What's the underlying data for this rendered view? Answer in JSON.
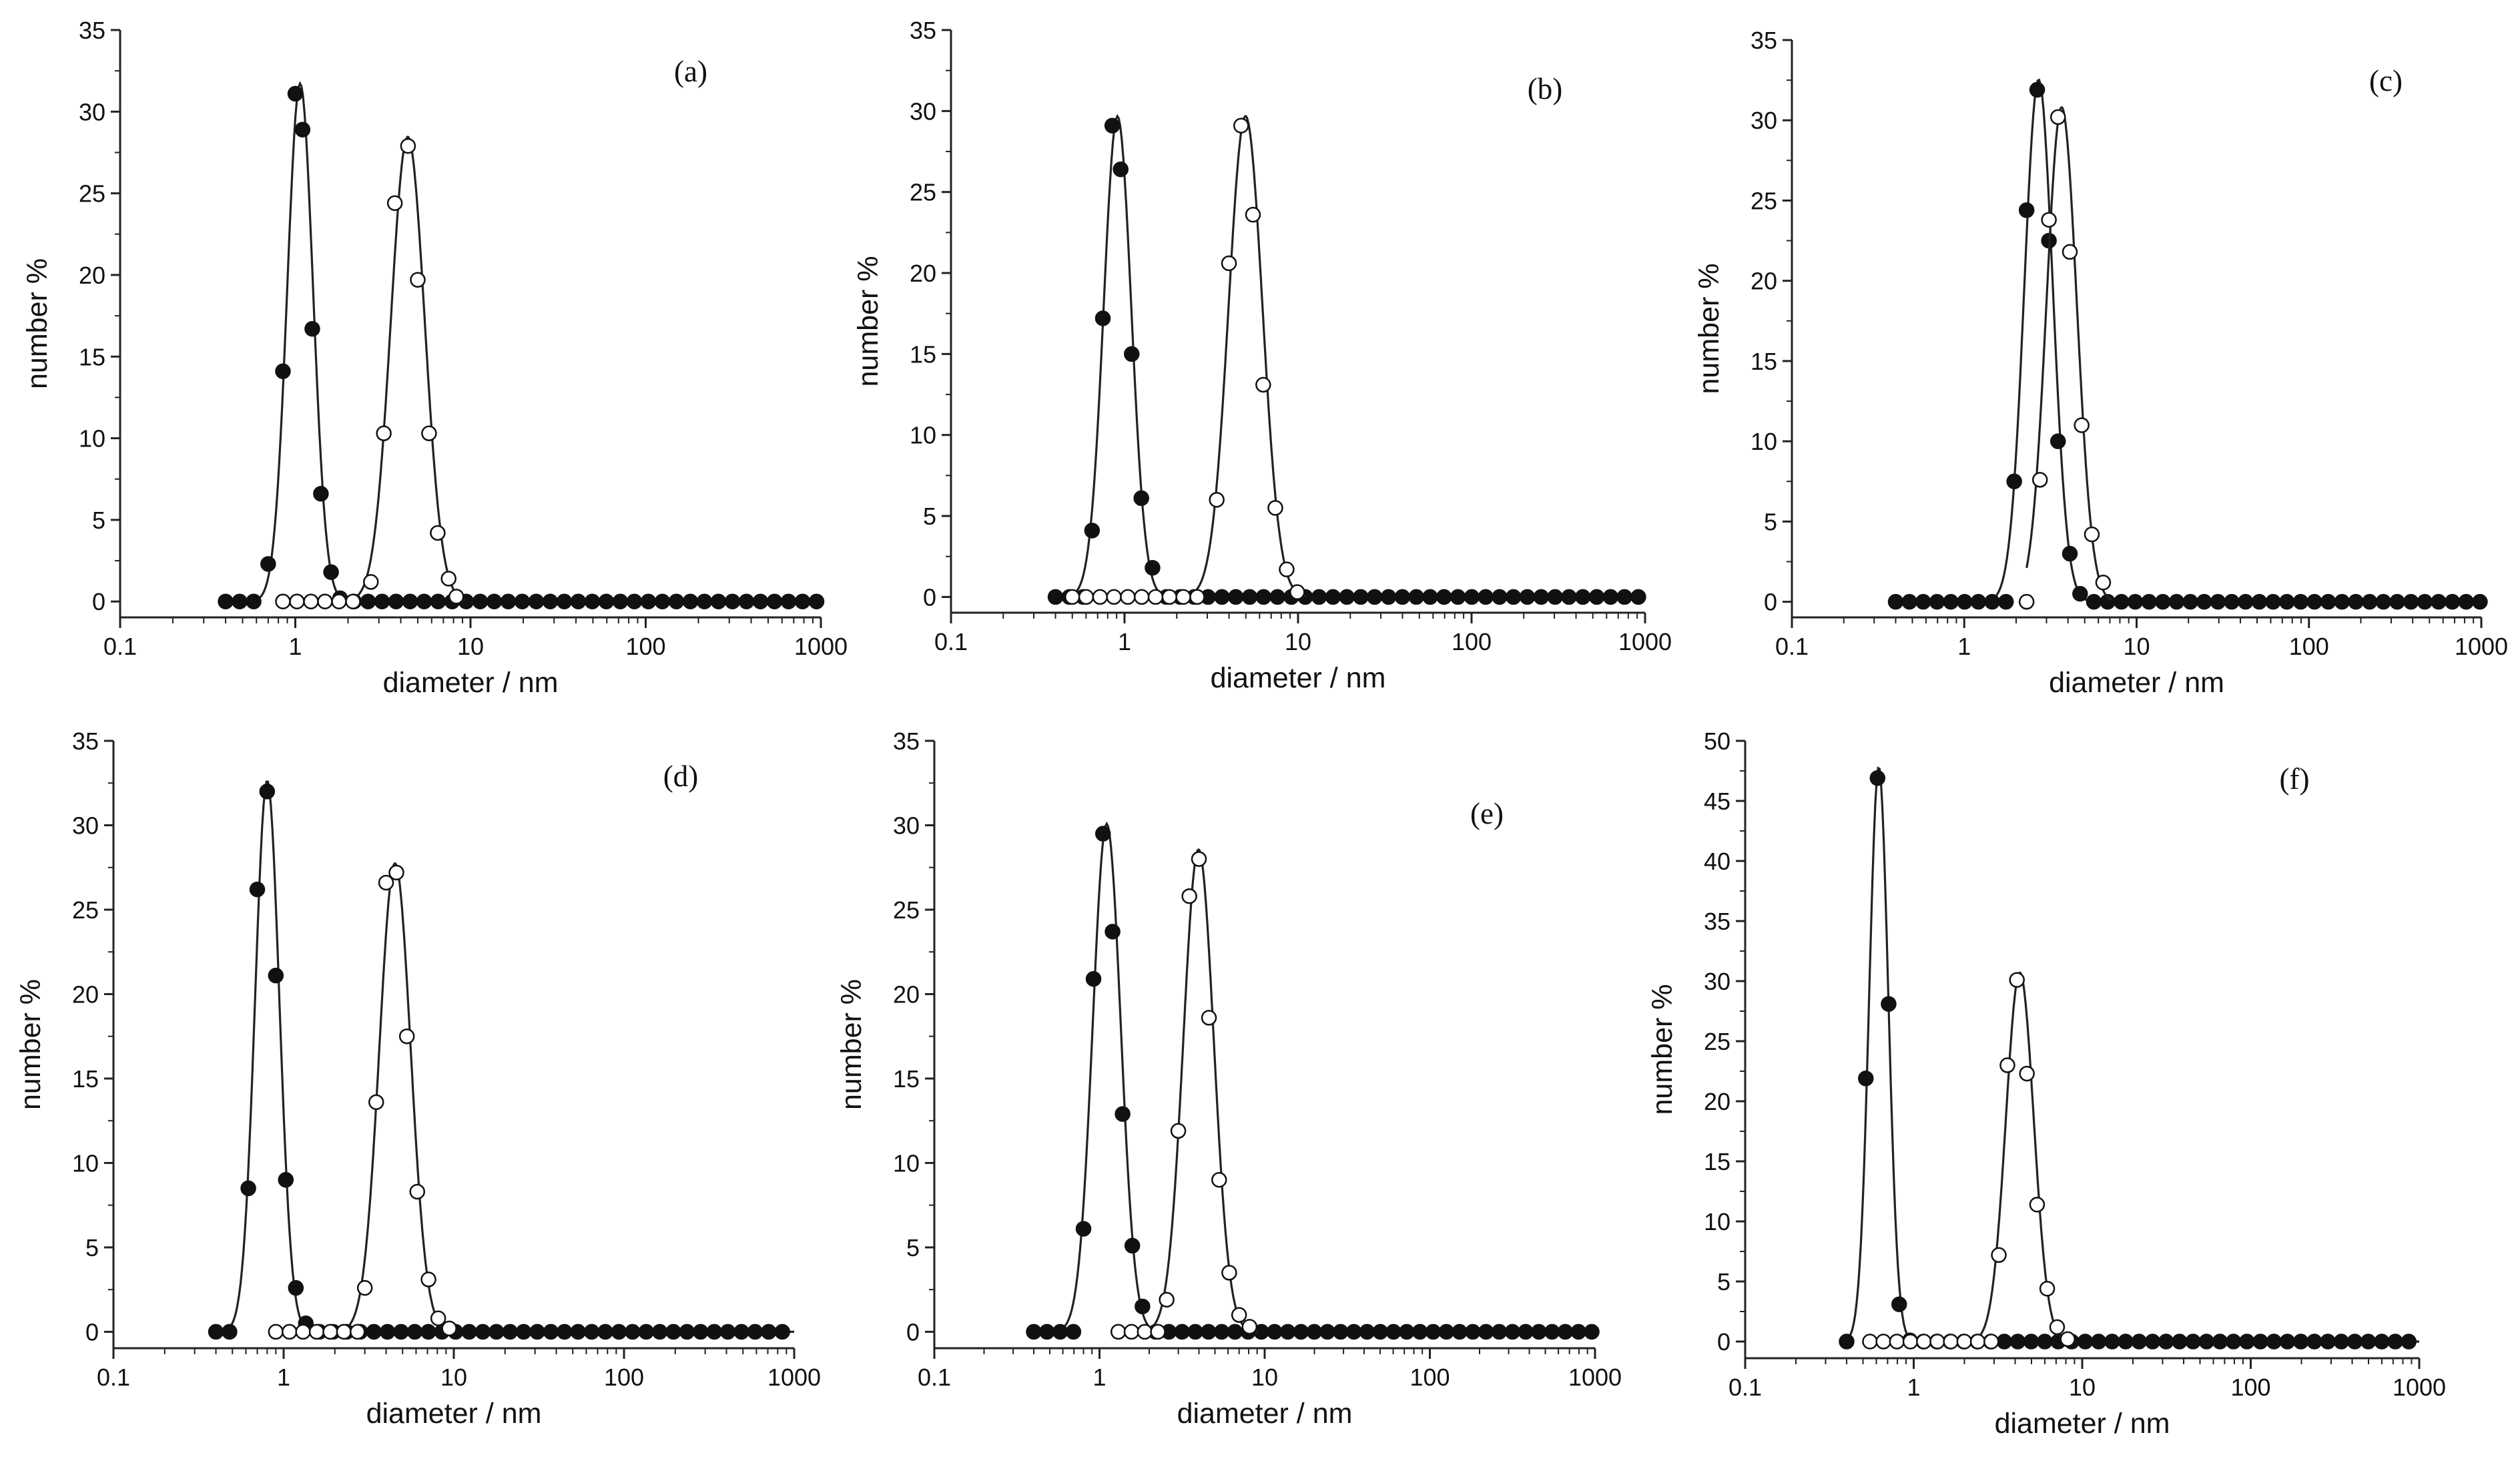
{
  "figure": {
    "caption": ""
  },
  "chart_data": [
    {
      "type": "scatter",
      "label": "(a)",
      "xlabel": "diameter / nm",
      "ylabel": "number %",
      "xscale": "log",
      "xlim": [
        0.1,
        1000
      ],
      "ylim": [
        0,
        35
      ],
      "xticks": [
        "0.1",
        "1",
        "10",
        "100",
        "1000"
      ],
      "yticks": [
        "0",
        "5",
        "10",
        "15",
        "20",
        "25",
        "30",
        "35"
      ],
      "series": [
        {
          "name": "filled",
          "marker": "filled-circle",
          "x": [
            0.4,
            0.7,
            0.85,
            1.0,
            1.1,
            1.25,
            1.4,
            1.6,
            1.8
          ],
          "y": [
            0,
            2.3,
            14.1,
            31.1,
            28.9,
            16.7,
            6.6,
            1.8,
            0.2
          ]
        },
        {
          "name": "open",
          "marker": "open-circle",
          "x": [
            0.85,
            2.7,
            3.2,
            3.7,
            4.4,
            5.0,
            5.8,
            6.5,
            7.5,
            8.3
          ],
          "y": [
            0,
            1.2,
            10.3,
            24.4,
            27.9,
            19.7,
            10.3,
            4.2,
            1.4,
            0.3
          ]
        }
      ]
    },
    {
      "type": "scatter",
      "label": "(b)",
      "xlabel": "diameter / nm",
      "ylabel": "number %",
      "xscale": "log",
      "xlim": [
        0.1,
        1000
      ],
      "ylim": [
        0,
        35
      ],
      "xticks": [
        "0.1",
        "1",
        "10",
        "100",
        "1000"
      ],
      "yticks": [
        "0",
        "5",
        "10",
        "15",
        "20",
        "25",
        "30",
        "35"
      ],
      "series": [
        {
          "name": "filled",
          "marker": "filled-circle",
          "x": [
            0.4,
            0.65,
            0.75,
            0.85,
            0.95,
            1.1,
            1.25,
            1.45
          ],
          "y": [
            0,
            4.1,
            17.2,
            29.1,
            26.4,
            15.0,
            6.1,
            1.8
          ]
        },
        {
          "name": "open",
          "marker": "open-circle",
          "x": [
            0.5,
            3.4,
            4.0,
            4.7,
            5.5,
            6.3,
            7.4,
            8.6,
            9.9
          ],
          "y": [
            0,
            6.0,
            20.6,
            29.1,
            23.6,
            13.1,
            5.5,
            1.7,
            0.3
          ]
        }
      ]
    },
    {
      "type": "scatter",
      "label": "(c)",
      "xlabel": "diameter / nm",
      "ylabel": "number %",
      "xscale": "log",
      "xlim": [
        0.1,
        1000
      ],
      "ylim": [
        0,
        35
      ],
      "xticks": [
        "0.1",
        "1",
        "10",
        "100",
        "1000"
      ],
      "yticks": [
        "0",
        "5",
        "10",
        "15",
        "20",
        "25",
        "30",
        "35"
      ],
      "series": [
        {
          "name": "filled",
          "marker": "filled-circle",
          "x": [
            0.4,
            1.95,
            2.3,
            2.65,
            3.1,
            3.5,
            4.1,
            4.7
          ],
          "y": [
            0,
            7.5,
            24.4,
            31.9,
            22.5,
            10.0,
            3.0,
            0.5
          ]
        },
        {
          "name": "open",
          "marker": "open-circle",
          "x": [
            2.3,
            2.75,
            3.1,
            3.5,
            4.1,
            4.8,
            5.5,
            6.4
          ],
          "y": [
            0,
            7.6,
            23.8,
            30.2,
            21.8,
            11.0,
            4.2,
            1.2
          ]
        }
      ]
    },
    {
      "type": "scatter",
      "label": "(d)",
      "xlabel": "diameter / nm",
      "ylabel": "number %",
      "xscale": "log",
      "xlim": [
        0.1,
        1000
      ],
      "ylim": [
        0,
        35
      ],
      "xticks": [
        "0.1",
        "1",
        "10",
        "100",
        "1000"
      ],
      "yticks": [
        "0",
        "5",
        "10",
        "15",
        "20",
        "25",
        "30",
        "35"
      ],
      "series": [
        {
          "name": "filled",
          "marker": "filled-circle",
          "x": [
            0.4,
            0.62,
            0.7,
            0.8,
            0.9,
            1.03,
            1.18,
            1.35
          ],
          "y": [
            0,
            8.5,
            26.2,
            32.0,
            21.1,
            9.0,
            2.6,
            0.5
          ]
        },
        {
          "name": "open",
          "marker": "open-circle",
          "x": [
            0.9,
            3.0,
            3.5,
            4.0,
            4.6,
            5.3,
            6.1,
            7.1,
            8.1,
            9.4
          ],
          "y": [
            0,
            2.6,
            13.6,
            26.6,
            27.2,
            17.5,
            8.3,
            3.1,
            0.8,
            0.2
          ]
        }
      ]
    },
    {
      "type": "scatter",
      "label": "(e)",
      "xlabel": "diameter / nm",
      "ylabel": "number %",
      "xscale": "log",
      "xlim": [
        0.1,
        1000
      ],
      "ylim": [
        0,
        35
      ],
      "xticks": [
        "0.1",
        "1",
        "10",
        "100",
        "1000"
      ],
      "yticks": [
        "0",
        "5",
        "10",
        "15",
        "20",
        "25",
        "30",
        "35"
      ],
      "series": [
        {
          "name": "filled",
          "marker": "filled-circle",
          "x": [
            0.4,
            0.8,
            0.92,
            1.05,
            1.2,
            1.38,
            1.58,
            1.82
          ],
          "y": [
            0,
            6.1,
            20.9,
            29.5,
            23.7,
            12.9,
            5.1,
            1.5
          ]
        },
        {
          "name": "open",
          "marker": "open-circle",
          "x": [
            1.3,
            2.55,
            3.0,
            3.5,
            4.0,
            4.6,
            5.3,
            6.1,
            7.0,
            8.1
          ],
          "y": [
            0,
            1.9,
            11.9,
            25.8,
            28.0,
            18.6,
            9.0,
            3.5,
            1.0,
            0.3
          ]
        }
      ]
    },
    {
      "type": "scatter",
      "label": "(f)",
      "xlabel": "diameter / nm",
      "ylabel": "number %",
      "xscale": "log",
      "xlim": [
        0.1,
        1000
      ],
      "ylim": [
        0,
        50
      ],
      "xticks": [
        "0.1",
        "1",
        "10",
        "100",
        "1000"
      ],
      "yticks": [
        "0",
        "5",
        "10",
        "15",
        "20",
        "25",
        "30",
        "35",
        "40",
        "45",
        "50"
      ],
      "series": [
        {
          "name": "filled",
          "marker": "filled-circle",
          "x": [
            0.4,
            0.52,
            0.61,
            0.71,
            0.82,
            0.95
          ],
          "y": [
            0,
            21.9,
            46.9,
            28.1,
            3.1,
            0.1
          ]
        },
        {
          "name": "open",
          "marker": "open-circle",
          "x": [
            0.55,
            3.2,
            3.6,
            4.1,
            4.7,
            5.4,
            6.2,
            7.1,
            8.2
          ],
          "y": [
            0,
            7.2,
            23.0,
            30.1,
            22.3,
            11.4,
            4.4,
            1.2,
            0.2
          ]
        }
      ]
    }
  ]
}
